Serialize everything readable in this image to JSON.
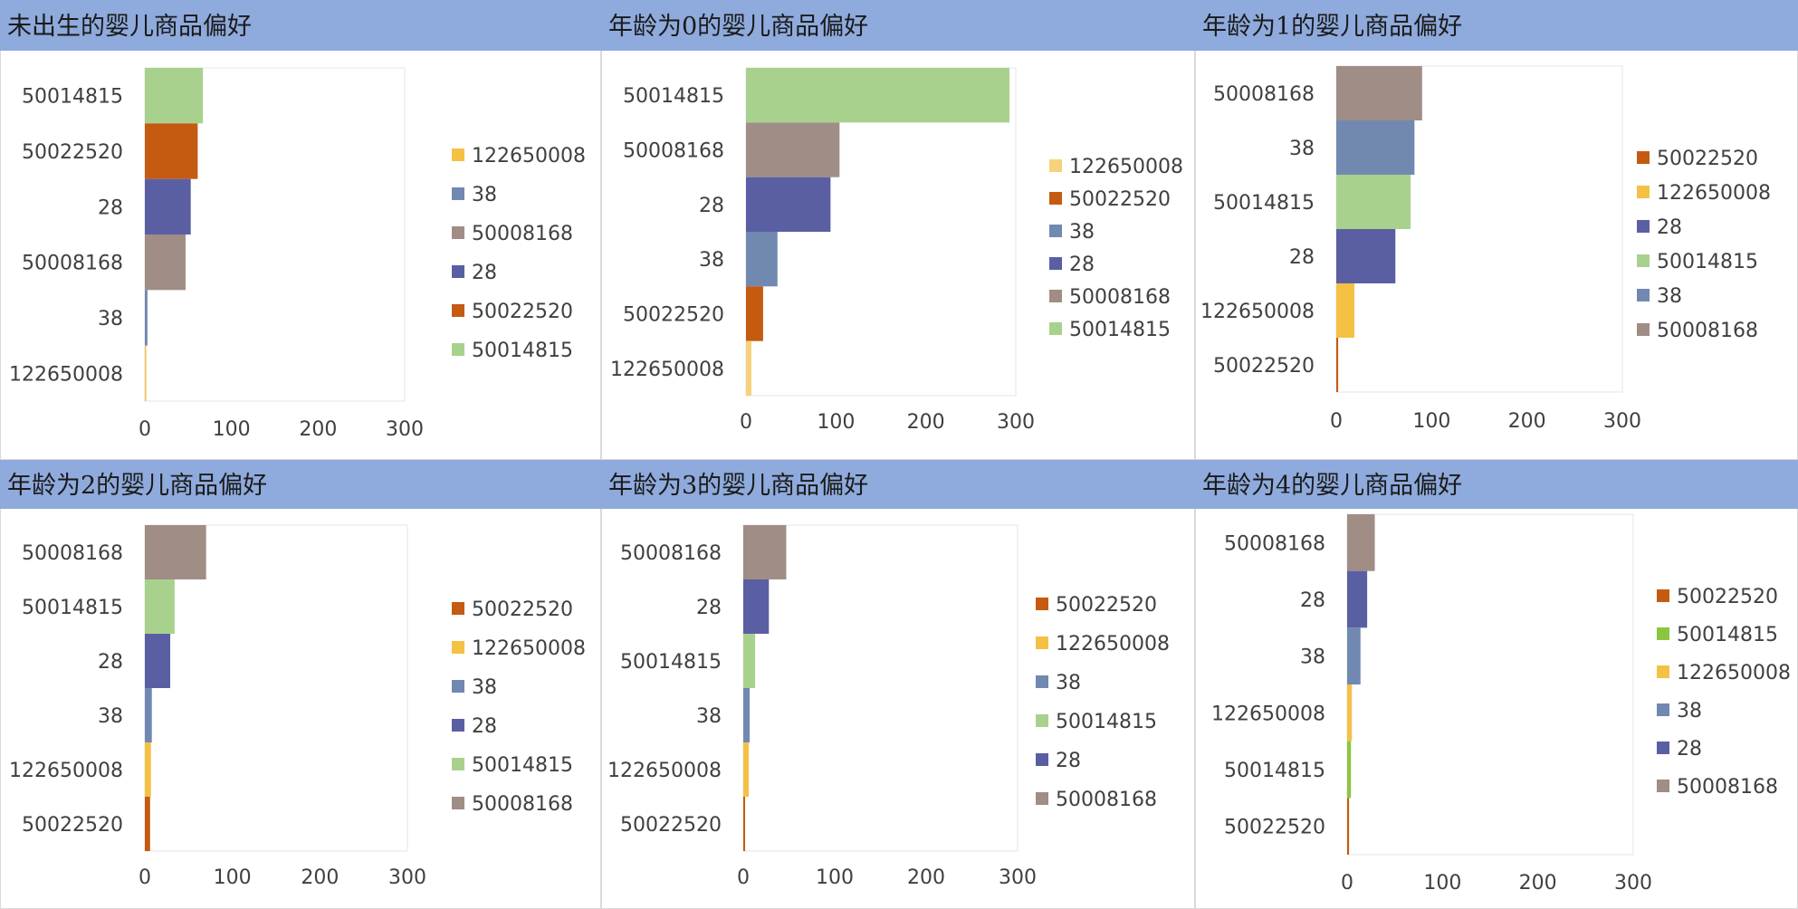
{
  "colors": {
    "50014815": "#a9d18e",
    "50022520": "#c55a11",
    "28": "#5a5fa3",
    "50008168": "#a08d86",
    "38": "#7189b0",
    "122650008": "#f4c145",
    "title_bar": "#8faadc"
  },
  "chart_data": [
    {
      "type": "bar",
      "orientation": "horizontal",
      "title": "未出生的婴儿商品偏好",
      "categories": [
        "50014815",
        "50022520",
        "28",
        "50008168",
        "38",
        "122650008"
      ],
      "values": [
        67,
        61,
        53,
        47,
        3,
        1
      ],
      "xlim": [
        0,
        300
      ],
      "xticks": [
        "0",
        "100",
        "200",
        "300"
      ],
      "legend": [
        "122650008",
        "38",
        "50008168",
        "28",
        "50022520",
        "50014815"
      ],
      "legend_position": "right",
      "legend_colors": {
        "122650008": "#f4c145"
      }
    },
    {
      "type": "bar",
      "orientation": "horizontal",
      "title": "年龄为0的婴儿商品偏好",
      "categories": [
        "50014815",
        "50008168",
        "28",
        "38",
        "50022520",
        "122650008"
      ],
      "values": [
        293,
        104,
        94,
        35,
        19,
        6
      ],
      "xlim": [
        0,
        300
      ],
      "xticks": [
        "0",
        "100",
        "200",
        "300"
      ],
      "legend": [
        "122650008",
        "50022520",
        "38",
        "28",
        "50008168",
        "50014815"
      ],
      "legend_position": "right",
      "legend_colors": {
        "122650008": "#f6d27a"
      }
    },
    {
      "type": "bar",
      "orientation": "horizontal",
      "title": "年龄为1的婴儿商品偏好",
      "categories": [
        "50008168",
        "38",
        "50014815",
        "28",
        "122650008",
        "50022520"
      ],
      "values": [
        90,
        82,
        78,
        62,
        19,
        2
      ],
      "xlim": [
        0,
        300
      ],
      "xticks": [
        "0",
        "100",
        "200",
        "300"
      ],
      "legend": [
        "50022520",
        "122650008",
        "28",
        "50014815",
        "38",
        "50008168"
      ],
      "legend_position": "right"
    },
    {
      "type": "bar",
      "orientation": "horizontal",
      "title": "年龄为2的婴儿商品偏好",
      "categories": [
        "50008168",
        "50014815",
        "28",
        "38",
        "122650008",
        "50022520"
      ],
      "values": [
        70,
        34,
        29,
        8,
        7,
        6
      ],
      "xlim": [
        0,
        300
      ],
      "xticks": [
        "0",
        "100",
        "200",
        "300"
      ],
      "legend": [
        "50022520",
        "122650008",
        "38",
        "28",
        "50014815",
        "50008168"
      ],
      "legend_position": "right"
    },
    {
      "type": "bar",
      "orientation": "horizontal",
      "title": "年龄为3的婴儿商品偏好",
      "categories": [
        "50008168",
        "28",
        "50014815",
        "38",
        "122650008",
        "50022520"
      ],
      "values": [
        47,
        28,
        13,
        7,
        6,
        2
      ],
      "xlim": [
        0,
        300
      ],
      "xticks": [
        "0",
        "100",
        "200",
        "300"
      ],
      "legend": [
        "50022520",
        "122650008",
        "38",
        "50014815",
        "28",
        "50008168"
      ],
      "legend_position": "right"
    },
    {
      "type": "bar",
      "orientation": "horizontal",
      "title": "年龄为4的婴儿商品偏好",
      "categories": [
        "50008168",
        "28",
        "38",
        "122650008",
        "50014815",
        "50022520"
      ],
      "values": [
        29,
        21,
        14,
        5,
        4,
        2
      ],
      "xlim": [
        0,
        300
      ],
      "xticks": [
        "0",
        "100",
        "200",
        "300"
      ],
      "legend": [
        "50022520",
        "50014815",
        "122650008",
        "38",
        "28",
        "50008168"
      ],
      "legend_position": "right",
      "legend_colors": {
        "50014815": "#8cc63f"
      }
    }
  ]
}
